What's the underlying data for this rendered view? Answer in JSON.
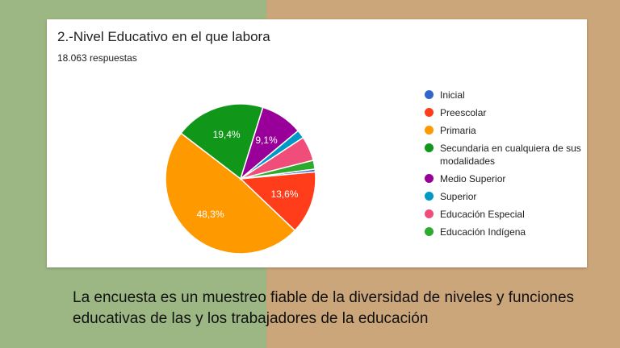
{
  "card": {
    "title": "2.-Nivel Educativo en el que labora",
    "subtitle": "18.063 respuestas"
  },
  "caption": "La encuesta es un muestreo fiable de la diversidad de niveles y funciones educativas de las y los trabajadores de la educación",
  "chart_data": {
    "type": "pie",
    "title": "2.-Nivel Educativo en el que labora",
    "legend_position": "right",
    "slices": [
      {
        "name": "Inicial",
        "value": 0.6,
        "color": "#3366cc",
        "label": ""
      },
      {
        "name": "Preescolar",
        "value": 13.6,
        "color": "#ff3d1a",
        "label": "13,6%"
      },
      {
        "name": "Primaria",
        "value": 48.3,
        "color": "#ff9900",
        "label": "48,3%"
      },
      {
        "name": "Secundaria en cualquiera de sus modalidades",
        "value": 19.4,
        "color": "#109618",
        "label": "19,4%"
      },
      {
        "name": "Medio Superior",
        "value": 9.1,
        "color": "#990099",
        "label": "9,1%"
      },
      {
        "name": "Superior",
        "value": 1.8,
        "color": "#0099c6",
        "label": ""
      },
      {
        "name": "Educación Especial",
        "value": 5.3,
        "color": "#f04d7a",
        "label": ""
      },
      {
        "name": "Educación Indígena",
        "value": 1.9,
        "color": "#2eaa2e",
        "label": ""
      }
    ]
  }
}
